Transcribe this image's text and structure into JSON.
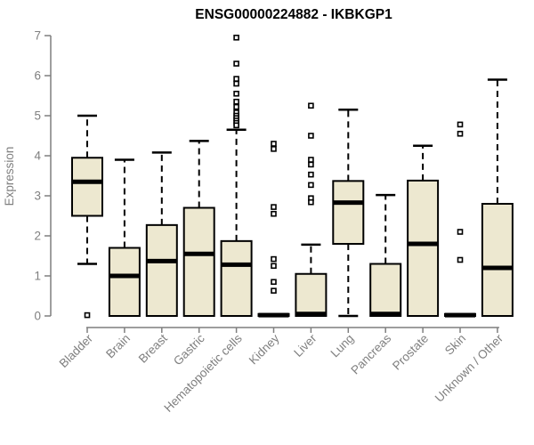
{
  "chart_data": {
    "type": "boxplot",
    "title": "ENSG00000224882 - IKBKGP1",
    "ylabel": "Expression",
    "xlabel": "",
    "ylim": [
      0,
      7
    ],
    "yticks": [
      0,
      1,
      2,
      3,
      4,
      5,
      6,
      7
    ],
    "grid": false,
    "legend": false,
    "categories": [
      "Bladder",
      "Brain",
      "Breast",
      "Gastric",
      "Hematopoietic cells",
      "Kidney",
      "Liver",
      "Lung",
      "Pancreas",
      "Prostate",
      "Skin",
      "Unknown / Other"
    ],
    "boxes": [
      {
        "label": "Bladder",
        "whisker_low": 1.3,
        "q1": 2.5,
        "median": 3.35,
        "q3": 3.95,
        "whisker_high": 5.0,
        "outliers": [
          0.02
        ]
      },
      {
        "label": "Brain",
        "whisker_low": 0,
        "q1": 0,
        "median": 1.0,
        "q3": 1.7,
        "whisker_high": 3.9,
        "outliers": []
      },
      {
        "label": "Breast",
        "whisker_low": 0,
        "q1": 0,
        "median": 1.37,
        "q3": 2.27,
        "whisker_high": 4.08,
        "outliers": []
      },
      {
        "label": "Gastric",
        "whisker_low": 0,
        "q1": 0,
        "median": 1.55,
        "q3": 2.7,
        "whisker_high": 4.37,
        "outliers": []
      },
      {
        "label": "Hematopoietic cells",
        "whisker_low": 0,
        "q1": 0,
        "median": 1.28,
        "q3": 1.87,
        "whisker_high": 4.65,
        "outliers": [
          6.95,
          6.3,
          5.92,
          5.8,
          5.55,
          5.35,
          5.22,
          5.08,
          5.0,
          4.94,
          4.88,
          4.82,
          4.76
        ]
      },
      {
        "label": "Kidney",
        "whisker_low": 0,
        "q1": 0,
        "median": 0.02,
        "q3": 0.05,
        "whisker_high": 0.05,
        "outliers": [
          4.3,
          4.17,
          2.72,
          2.55,
          1.42,
          1.25,
          0.85,
          0.63
        ]
      },
      {
        "label": "Liver",
        "whisker_low": 0,
        "q1": 0,
        "median": 0.05,
        "q3": 1.05,
        "whisker_high": 1.78,
        "outliers": [
          5.25,
          4.5,
          3.9,
          3.78,
          3.53,
          3.27,
          2.94,
          2.84
        ]
      },
      {
        "label": "Lung",
        "whisker_low": 0,
        "q1": 1.8,
        "median": 2.83,
        "q3": 3.37,
        "whisker_high": 5.15,
        "outliers": []
      },
      {
        "label": "Pancreas",
        "whisker_low": 0,
        "q1": 0,
        "median": 0.05,
        "q3": 1.3,
        "whisker_high": 3.02,
        "outliers": []
      },
      {
        "label": "Prostate",
        "whisker_low": 0,
        "q1": 0,
        "median": 1.8,
        "q3": 3.38,
        "whisker_high": 4.25,
        "outliers": []
      },
      {
        "label": "Skin",
        "whisker_low": 0,
        "q1": 0,
        "median": 0.02,
        "q3": 0.05,
        "whisker_high": 0.05,
        "outliers": [
          4.78,
          4.55,
          2.1,
          1.4
        ]
      },
      {
        "label": "Unknown / Other",
        "whisker_low": 0,
        "q1": 0,
        "median": 1.2,
        "q3": 2.8,
        "whisker_high": 5.9,
        "outliers": []
      }
    ],
    "colors": {
      "box_fill": "#EDE8D0",
      "box_border": "#000000",
      "median": "#000000",
      "axis": "#7f7f7f",
      "title": "#000000",
      "background": "#ffffff"
    }
  }
}
